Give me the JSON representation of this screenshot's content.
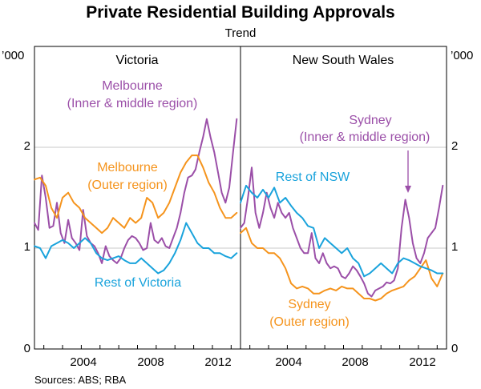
{
  "chart_data": {
    "type": "line",
    "title": "Private Residential Building Approvals",
    "subtitle": "Trend",
    "y_unit_left": "’000",
    "y_unit_right": "’000",
    "ylim": [
      0,
      3
    ],
    "yticks": [
      "0",
      "1",
      "2"
    ],
    "x_tick_labels": [
      "2004",
      "2008",
      "2012"
    ],
    "x_range": [
      2001.5,
      2012.5
    ],
    "source": "Sources: ABS; RBA",
    "panels": [
      {
        "id": "vic",
        "title": "Victoria",
        "series": [
          {
            "name": "Melbourne (Inner & middle region)",
            "color": "#9b4fa8",
            "x": [
              2001.5,
              2001.7,
              2001.9,
              2002.1,
              2002.3,
              2002.5,
              2002.7,
              2002.9,
              2003.1,
              2003.3,
              2003.5,
              2003.7,
              2003.9,
              2004.1,
              2004.3,
              2004.5,
              2004.7,
              2004.9,
              2005.1,
              2005.3,
              2005.5,
              2005.7,
              2005.9,
              2006.1,
              2006.3,
              2006.5,
              2006.7,
              2006.9,
              2007.1,
              2007.3,
              2007.5,
              2007.7,
              2007.9,
              2008.1,
              2008.3,
              2008.5,
              2008.7,
              2008.9,
              2009.1,
              2009.3,
              2009.5,
              2009.7,
              2009.9,
              2010.1,
              2010.3,
              2010.5,
              2010.7,
              2010.9,
              2011.1,
              2011.3,
              2011.5,
              2011.7,
              2011.9,
              2012.1,
              2012.3
            ],
            "values": [
              1.25,
              1.18,
              1.72,
              1.5,
              1.2,
              1.22,
              1.45,
              1.15,
              1.05,
              1.28,
              1.1,
              1.05,
              0.98,
              1.38,
              1.12,
              1.05,
              1.02,
              0.95,
              0.85,
              1.02,
              0.92,
              0.88,
              0.85,
              0.9,
              1.0,
              1.08,
              1.12,
              1.1,
              1.05,
              0.98,
              1.0,
              1.25,
              1.08,
              1.05,
              1.1,
              1.02,
              1.0,
              1.1,
              1.2,
              1.35,
              1.55,
              1.7,
              1.72,
              1.78,
              1.95,
              2.1,
              2.28,
              2.1,
              1.95,
              1.75,
              1.55,
              1.45,
              1.6,
              1.95,
              2.28
            ]
          },
          {
            "name": "Melbourne (Outer region)",
            "color": "#f5941d",
            "x": [
              2001.5,
              2001.8,
              2002.1,
              2002.4,
              2002.7,
              2003.0,
              2003.3,
              2003.6,
              2003.9,
              2004.2,
              2004.5,
              2004.8,
              2005.1,
              2005.4,
              2005.7,
              2006.0,
              2006.3,
              2006.6,
              2006.9,
              2007.2,
              2007.5,
              2007.8,
              2008.1,
              2008.4,
              2008.7,
              2009.0,
              2009.3,
              2009.6,
              2009.9,
              2010.2,
              2010.5,
              2010.8,
              2011.1,
              2011.4,
              2011.7,
              2012.0,
              2012.3
            ],
            "values": [
              1.68,
              1.7,
              1.62,
              1.4,
              1.3,
              1.5,
              1.55,
              1.45,
              1.4,
              1.3,
              1.25,
              1.2,
              1.15,
              1.2,
              1.3,
              1.25,
              1.2,
              1.3,
              1.25,
              1.3,
              1.5,
              1.45,
              1.3,
              1.35,
              1.45,
              1.6,
              1.75,
              1.85,
              1.92,
              1.92,
              1.8,
              1.65,
              1.55,
              1.4,
              1.3,
              1.3,
              1.35
            ]
          },
          {
            "name": "Rest of Victoria",
            "color": "#1aa3dc",
            "x": [
              2001.5,
              2001.8,
              2002.1,
              2002.4,
              2002.7,
              2003.0,
              2003.3,
              2003.6,
              2003.9,
              2004.2,
              2004.5,
              2004.8,
              2005.1,
              2005.4,
              2005.7,
              2006.0,
              2006.3,
              2006.6,
              2006.9,
              2007.2,
              2007.5,
              2007.8,
              2008.1,
              2008.4,
              2008.7,
              2009.0,
              2009.3,
              2009.6,
              2009.9,
              2010.2,
              2010.5,
              2010.8,
              2011.1,
              2011.4,
              2011.7,
              2012.0,
              2012.3
            ],
            "values": [
              1.02,
              1.0,
              0.9,
              1.02,
              1.05,
              1.08,
              1.05,
              1.0,
              1.05,
              1.1,
              1.05,
              0.95,
              0.9,
              0.88,
              0.9,
              0.92,
              0.88,
              0.85,
              0.85,
              0.9,
              0.85,
              0.8,
              0.75,
              0.78,
              0.85,
              0.95,
              1.08,
              1.25,
              1.15,
              1.05,
              1.0,
              1.0,
              0.95,
              0.95,
              0.92,
              0.9,
              0.95
            ]
          }
        ],
        "annotations": [
          {
            "lines": [
              "Melbourne",
              "(Inner & middle region)"
            ],
            "color": "#9b4fa8"
          },
          {
            "lines": [
              "Melbourne",
              "(Outer region)"
            ],
            "color": "#f5941d"
          },
          {
            "lines": [
              "Rest of Victoria"
            ],
            "color": "#1aa3dc"
          }
        ]
      },
      {
        "id": "nsw",
        "title": "New South Wales",
        "series": [
          {
            "name": "Sydney (Inner & middle region)",
            "color": "#9b4fa8",
            "x": [
              2001.5,
              2001.7,
              2001.9,
              2002.1,
              2002.3,
              2002.5,
              2002.7,
              2002.9,
              2003.1,
              2003.3,
              2003.5,
              2003.7,
              2003.9,
              2004.1,
              2004.3,
              2004.5,
              2004.7,
              2004.9,
              2005.1,
              2005.3,
              2005.5,
              2005.7,
              2005.9,
              2006.1,
              2006.3,
              2006.5,
              2006.7,
              2006.9,
              2007.1,
              2007.3,
              2007.5,
              2007.7,
              2007.9,
              2008.1,
              2008.3,
              2008.5,
              2008.7,
              2008.9,
              2009.1,
              2009.3,
              2009.5,
              2009.7,
              2009.9,
              2010.1,
              2010.3,
              2010.5,
              2010.7,
              2010.9,
              2011.1,
              2011.3,
              2011.5,
              2011.7,
              2011.9,
              2012.1,
              2012.3
            ],
            "values": [
              1.2,
              1.25,
              1.5,
              1.8,
              1.35,
              1.2,
              1.35,
              1.55,
              1.4,
              1.3,
              1.45,
              1.35,
              1.3,
              1.35,
              1.2,
              1.1,
              1.0,
              0.95,
              0.95,
              1.15,
              0.9,
              0.85,
              0.95,
              0.85,
              0.8,
              0.82,
              0.8,
              0.72,
              0.7,
              0.75,
              0.82,
              0.78,
              0.72,
              0.65,
              0.55,
              0.52,
              0.58,
              0.6,
              0.62,
              0.66,
              0.65,
              0.68,
              0.8,
              1.2,
              1.48,
              1.3,
              1.05,
              0.9,
              0.85,
              0.95,
              1.1,
              1.15,
              1.2,
              1.4,
              1.62
            ]
          },
          {
            "name": "Sydney (Outer region)",
            "color": "#f5941d",
            "x": [
              2001.5,
              2001.8,
              2002.1,
              2002.4,
              2002.7,
              2003.0,
              2003.3,
              2003.6,
              2003.9,
              2004.2,
              2004.5,
              2004.8,
              2005.1,
              2005.4,
              2005.7,
              2006.0,
              2006.3,
              2006.6,
              2006.9,
              2007.2,
              2007.5,
              2007.8,
              2008.1,
              2008.4,
              2008.7,
              2009.0,
              2009.3,
              2009.6,
              2009.9,
              2010.2,
              2010.5,
              2010.8,
              2011.1,
              2011.4,
              2011.7,
              2012.0,
              2012.3
            ],
            "values": [
              1.15,
              1.2,
              1.05,
              1.0,
              1.0,
              0.95,
              0.95,
              0.9,
              0.8,
              0.65,
              0.6,
              0.62,
              0.6,
              0.55,
              0.55,
              0.58,
              0.6,
              0.58,
              0.62,
              0.6,
              0.6,
              0.55,
              0.5,
              0.5,
              0.48,
              0.5,
              0.55,
              0.58,
              0.6,
              0.62,
              0.68,
              0.72,
              0.8,
              0.88,
              0.7,
              0.62,
              0.75
            ]
          },
          {
            "name": "Rest of NSW",
            "color": "#1aa3dc",
            "x": [
              2001.5,
              2001.8,
              2002.1,
              2002.4,
              2002.7,
              2003.0,
              2003.3,
              2003.6,
              2003.9,
              2004.2,
              2004.5,
              2004.8,
              2005.1,
              2005.4,
              2005.7,
              2006.0,
              2006.3,
              2006.6,
              2006.9,
              2007.2,
              2007.5,
              2007.8,
              2008.1,
              2008.4,
              2008.7,
              2009.0,
              2009.3,
              2009.6,
              2009.9,
              2010.2,
              2010.5,
              2010.8,
              2011.1,
              2011.4,
              2011.7,
              2012.0,
              2012.3
            ],
            "values": [
              1.45,
              1.62,
              1.55,
              1.5,
              1.58,
              1.5,
              1.6,
              1.45,
              1.5,
              1.42,
              1.35,
              1.3,
              1.22,
              1.2,
              1.0,
              1.1,
              1.05,
              1.0,
              0.95,
              1.0,
              0.9,
              0.85,
              0.72,
              0.75,
              0.8,
              0.85,
              0.8,
              0.75,
              0.85,
              0.9,
              0.88,
              0.85,
              0.82,
              0.8,
              0.78,
              0.75,
              0.75
            ]
          }
        ],
        "annotations": [
          {
            "lines": [
              "Sydney",
              "(Inner & middle region)"
            ],
            "color": "#9b4fa8"
          },
          {
            "lines": [
              "Rest of NSW"
            ],
            "color": "#1aa3dc"
          },
          {
            "lines": [
              "Sydney",
              "(Outer region)"
            ],
            "color": "#f5941d"
          }
        ]
      }
    ]
  }
}
